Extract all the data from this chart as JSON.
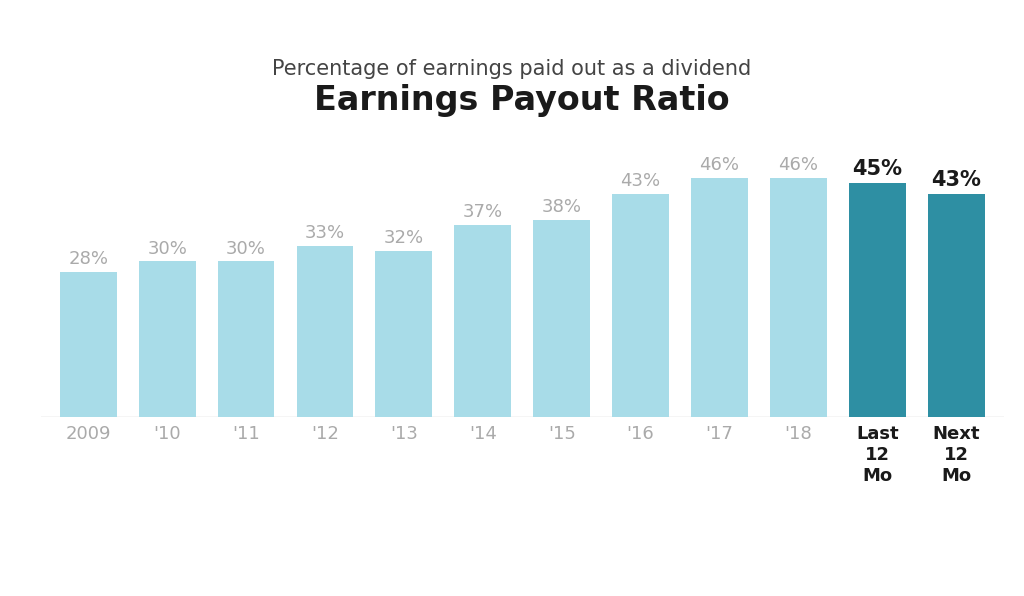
{
  "categories": [
    "2009",
    "'10",
    "'11",
    "'12",
    "'13",
    "'14",
    "'15",
    "'16",
    "'17",
    "'18",
    "Last\n12\nMo",
    "Next\n12\nMo"
  ],
  "values": [
    28,
    30,
    30,
    33,
    32,
    37,
    38,
    43,
    46,
    46,
    45,
    43
  ],
  "bar_colors": [
    "#a8dce8",
    "#a8dce8",
    "#a8dce8",
    "#a8dce8",
    "#a8dce8",
    "#a8dce8",
    "#a8dce8",
    "#a8dce8",
    "#a8dce8",
    "#a8dce8",
    "#2e8fa3",
    "#2e8fa3"
  ],
  "label_color_light": "#aaaaaa",
  "label_color_dark": "#1a1a1a",
  "title": "Earnings Payout Ratio",
  "subtitle": "Percentage of earnings paid out as a dividend",
  "title_fontsize": 24,
  "subtitle_fontsize": 15,
  "label_fontsize": 13,
  "tick_fontsize": 13,
  "background_color": "#ffffff",
  "ylim": [
    0,
    55
  ],
  "bottom_line_color": "#cccccc"
}
